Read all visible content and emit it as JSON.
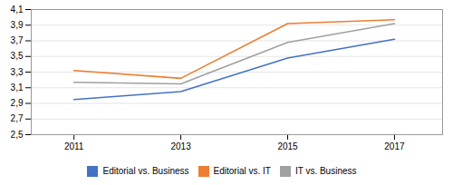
{
  "chart_data": {
    "type": "line",
    "x": [
      2011,
      2013,
      2015,
      2017
    ],
    "series": [
      {
        "name": "Editorial vs. Business",
        "color": "#4472C4",
        "values": [
          2.95,
          3.05,
          3.48,
          3.72
        ]
      },
      {
        "name": "Editorial vs. IT",
        "color": "#ED7D31",
        "values": [
          3.32,
          3.22,
          3.92,
          3.97
        ]
      },
      {
        "name": "IT vs. Business",
        "color": "#A0A0A0",
        "values": [
          3.17,
          3.15,
          3.68,
          3.92
        ]
      }
    ],
    "xlim": [
      2010.2,
      2017.9
    ],
    "xticks": [
      2011,
      2013,
      2015,
      2017
    ],
    "ylim": [
      2.5,
      4.1
    ],
    "yticks": [
      {
        "value": 2.5,
        "label": "2,5"
      },
      {
        "value": 2.7,
        "label": "2,7"
      },
      {
        "value": 2.9,
        "label": "2,9"
      },
      {
        "value": 3.1,
        "label": "3,1"
      },
      {
        "value": 3.3,
        "label": "3,3"
      },
      {
        "value": 3.5,
        "label": "3,5"
      },
      {
        "value": 3.7,
        "label": "3,7"
      },
      {
        "value": 3.9,
        "label": "3,9"
      },
      {
        "value": 4.1,
        "label": "4,1"
      }
    ],
    "grid": true,
    "legend": "bottom"
  }
}
